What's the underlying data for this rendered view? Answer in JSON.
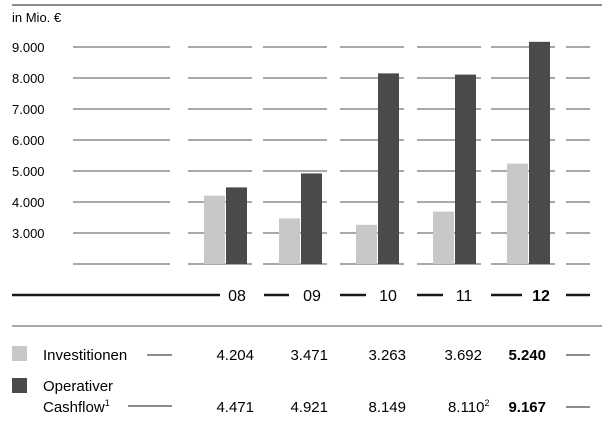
{
  "chart_data": {
    "type": "bar",
    "unit_label": "in Mio. €",
    "y_ticks": [
      "9.000",
      "8.000",
      "7.000",
      "6.000",
      "5.000",
      "4.000",
      "3.000"
    ],
    "y_tick_values": [
      9000,
      8000,
      7000,
      6000,
      5000,
      4000,
      3000
    ],
    "ylim": [
      2000,
      9500
    ],
    "categories": [
      "08",
      "09",
      "10",
      "11",
      "12"
    ],
    "highlight_category": "12",
    "series": [
      {
        "name": "Investitionen",
        "color": "#c8c8c8",
        "values": [
          4204,
          3471,
          3263,
          3692,
          5240
        ],
        "value_labels": [
          "4.204",
          "3.471",
          "3.263",
          "3.692",
          "5.240"
        ]
      },
      {
        "name_line1": "Operativer",
        "name_line2": "Cashflow",
        "name_sup": "1",
        "color": "#4a4a4a",
        "values": [
          4471,
          4921,
          8149,
          8110,
          9167
        ],
        "value_labels": [
          "4.471",
          "4.921",
          "8.149",
          "8.110",
          "9.167"
        ],
        "value_sups": [
          "",
          "",
          "",
          "2",
          ""
        ]
      }
    ]
  }
}
